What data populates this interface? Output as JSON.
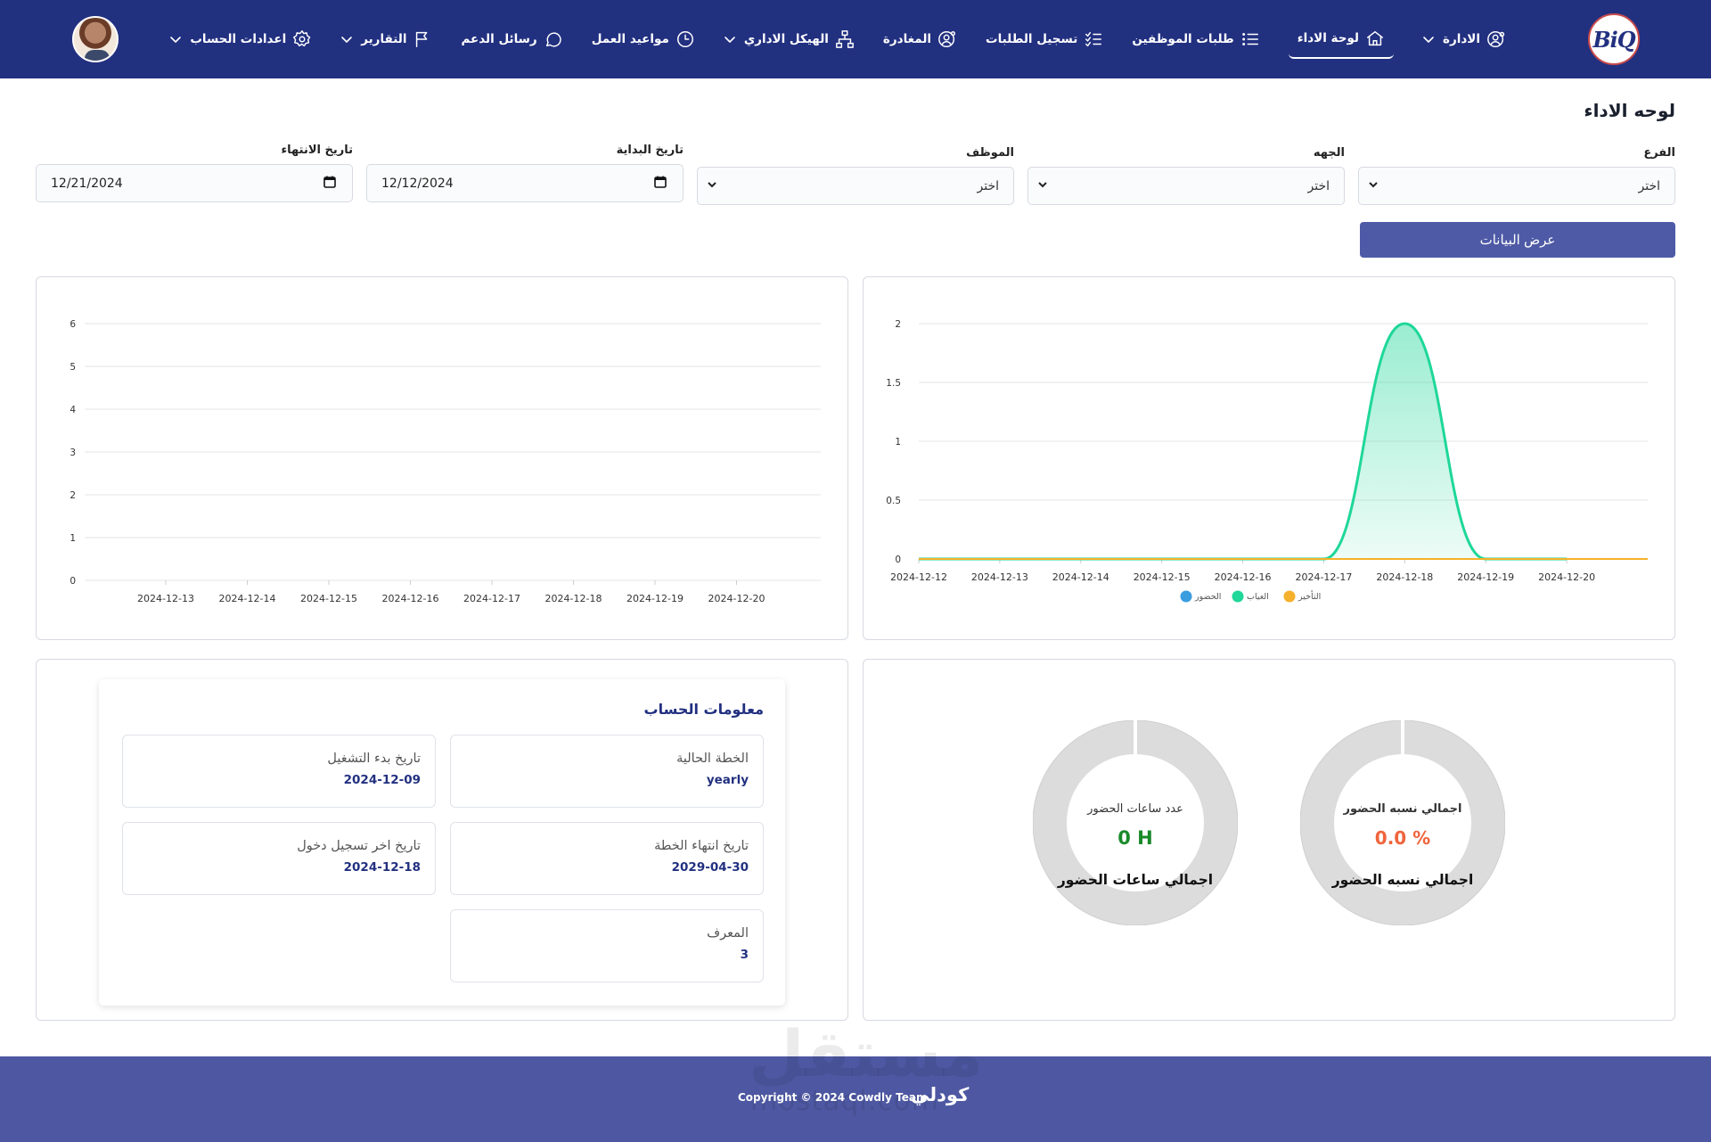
{
  "nav": {
    "logo_text": "BiQ",
    "items": [
      {
        "label": "الادارة",
        "icon": "user-gear-icon",
        "dropdown": true,
        "active": false
      },
      {
        "label": "لوحة الاداء",
        "icon": "home-icon",
        "dropdown": false,
        "active": true
      },
      {
        "label": "طلبات الموظفين",
        "icon": "list-icon",
        "dropdown": false,
        "active": false
      },
      {
        "label": "تسجيل الطلبات",
        "icon": "checklist-icon",
        "dropdown": false,
        "active": false
      },
      {
        "label": "المغادرة",
        "icon": "user-circle-icon",
        "dropdown": false,
        "active": false
      },
      {
        "label": "الهيكل الاداري",
        "icon": "hierarchy-icon",
        "dropdown": true,
        "active": false
      },
      {
        "label": "مواعيد العمل",
        "icon": "clock-icon",
        "dropdown": false,
        "active": false
      },
      {
        "label": "رسائل الدعم",
        "icon": "chat-icon",
        "dropdown": false,
        "active": false
      },
      {
        "label": "التقارير",
        "icon": "flag-icon",
        "dropdown": true,
        "active": false
      },
      {
        "label": "اعدادات الحساب",
        "icon": "gear-icon",
        "dropdown": true,
        "active": false
      }
    ]
  },
  "page": {
    "title": "لوحه الاداء",
    "filters": {
      "branch": {
        "label": "الفرع",
        "value": "اختر"
      },
      "department": {
        "label": "الجهه",
        "value": "اختر"
      },
      "employee": {
        "label": "الموظف",
        "value": "اختر"
      },
      "start_date": {
        "label": "تاريخ البداية",
        "value": "12/12/2024"
      },
      "end_date": {
        "label": "تاريخ الانتهاء",
        "value": "12/21/2024"
      }
    },
    "show_button": "عرض البيانات"
  },
  "chart_data": [
    {
      "type": "area",
      "x": [
        "2024-12-12",
        "2024-12-13",
        "2024-12-14",
        "2024-12-15",
        "2024-12-16",
        "2024-12-17",
        "2024-12-18",
        "2024-12-19",
        "2024-12-20"
      ],
      "y_ticks": [
        "0",
        "0.5",
        "1",
        "1.5",
        "2"
      ],
      "ylim": [
        0,
        2
      ],
      "series": [
        {
          "name": "الحضور",
          "color": "#3b9de0",
          "values": [
            0,
            0,
            0,
            0,
            0,
            0,
            0,
            0,
            0
          ]
        },
        {
          "name": "الغياب",
          "color": "#1ed799",
          "values": [
            0,
            0,
            0,
            0,
            0,
            0,
            2,
            0,
            0
          ]
        },
        {
          "name": "التأخير",
          "color": "#f5b12b",
          "values": [
            0,
            0,
            0,
            0,
            0,
            0,
            0,
            0,
            0
          ]
        }
      ],
      "legend": "bottom",
      "grid": true
    },
    {
      "type": "line",
      "x": [
        "2024-12-13",
        "2024-12-14",
        "2024-12-15",
        "2024-12-16",
        "2024-12-17",
        "2024-12-18",
        "2024-12-19",
        "2024-12-20"
      ],
      "y_ticks": [
        "0",
        "1",
        "2",
        "3",
        "4",
        "5",
        "6"
      ],
      "ylim": [
        0,
        6
      ],
      "series": [],
      "grid": true
    }
  ],
  "stats": {
    "attendance_rate": {
      "inner_label": "اجمالي نسبه الحضور",
      "value": "0.0 %",
      "title": "اجمالي نسبه الحضور",
      "value_color": "#f0643c"
    },
    "attendance_hours": {
      "inner_label": "عدد ساعات الحضور",
      "value": "0 H",
      "title": "اجمالي ساعات الحضور",
      "value_color": "#1a8a2a"
    }
  },
  "account": {
    "title": "معلومات الحساب",
    "current_plan_label": "الخطة الحالية",
    "current_plan": "yearly",
    "start_date_label": "تاريخ بدء التشغيل",
    "start_date": "2024-12-09",
    "plan_end_label": "تاريخ انتهاء الخطة",
    "plan_end": "2029-04-30",
    "last_login_label": "تاريخ اخر تسجيل دخول",
    "last_login": "2024-12-18",
    "id_label": "المعرف",
    "id": "3"
  },
  "footer": {
    "copyright": "Copyright © 2024 Cowdly Team",
    "brand": "كودلي",
    "watermark_ar": "مستقل",
    "watermark_en": "mostaql.com"
  }
}
